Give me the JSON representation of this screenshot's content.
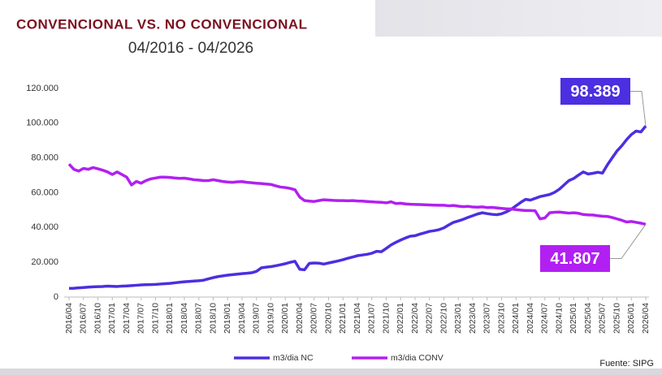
{
  "chart_data": {
    "type": "line",
    "title": "CONVENCIONAL VS. NO CONVENCIONAL",
    "subtitle": "04/2016 - 04/2026",
    "source": "Fuente: SIPG",
    "categories": [
      "2016/04",
      null,
      null,
      "2016/07",
      null,
      null,
      "2016/10",
      null,
      null,
      "2017/01",
      null,
      null,
      "2017/04",
      null,
      null,
      "2017/07",
      null,
      null,
      "2017/10",
      null,
      null,
      "2018/01",
      null,
      null,
      "2018/04",
      null,
      null,
      "2018/07",
      null,
      null,
      "2018/10",
      null,
      null,
      "2019/01",
      null,
      null,
      "2019/04",
      null,
      null,
      "2019/07",
      null,
      null,
      "2019/10",
      null,
      null,
      "2020/01",
      null,
      null,
      "2020/04",
      null,
      null,
      "2020/07",
      null,
      null,
      "2020/10",
      null,
      null,
      "2021/01",
      null,
      null,
      "2021/04",
      null,
      null,
      "2021/07",
      null,
      null,
      "2021/10",
      null,
      null,
      "2022/01",
      null,
      null,
      "2022/04",
      null,
      null,
      "2022/07",
      null,
      null,
      "2022/10",
      null,
      null,
      "2023/01",
      null,
      null,
      "2023/04",
      null,
      null,
      "2023/07",
      null,
      null,
      "2023/10",
      null,
      null,
      "2024/01",
      null,
      null,
      "2024/04",
      null,
      null,
      "2024/07",
      null,
      null,
      "2024/10",
      null,
      null,
      "2025/01",
      null,
      null,
      "2025/04",
      null,
      null,
      "2025/07",
      null,
      null,
      "2025/10",
      null,
      null,
      "2026/01",
      null,
      null,
      "2026/04"
    ],
    "series": [
      {
        "name": "m3/dia NC",
        "color": "#4b2fe0",
        "values": [
          5000,
          5100,
          5300,
          5500,
          5700,
          5900,
          6000,
          6100,
          6300,
          6200,
          6100,
          6300,
          6400,
          6600,
          6800,
          7000,
          7100,
          7200,
          7300,
          7500,
          7700,
          7900,
          8200,
          8500,
          8800,
          9000,
          9200,
          9400,
          9700,
          10500,
          11200,
          11800,
          12200,
          12600,
          12900,
          13200,
          13500,
          13700,
          14000,
          14800,
          16800,
          17200,
          17500,
          18000,
          18600,
          19200,
          20000,
          20600,
          16000,
          15700,
          19400,
          19600,
          19500,
          19000,
          19600,
          20200,
          20800,
          21500,
          22300,
          23000,
          23800,
          24200,
          24600,
          25200,
          26300,
          26100,
          28000,
          30000,
          31500,
          32800,
          34000,
          35000,
          35300,
          36200,
          37000,
          37800,
          38200,
          38800,
          39800,
          41500,
          43000,
          43800,
          44700,
          45800,
          46800,
          47800,
          48500,
          48000,
          47600,
          47400,
          47900,
          49000,
          50500,
          52500,
          54500,
          56200,
          55800,
          56800,
          57800,
          58400,
          59000,
          60200,
          62000,
          64500,
          67000,
          68200,
          70200,
          72000,
          70800,
          71200,
          71800,
          71300,
          76000,
          80000,
          84000,
          87000,
          90500,
          93500,
          95500,
          95000,
          98389
        ],
        "value_labels": [
          null,
          null,
          null,
          null,
          null,
          null,
          null,
          null,
          null,
          null,
          null,
          null,
          null,
          null,
          null,
          null,
          null,
          null,
          null,
          null,
          null,
          null,
          null,
          null,
          null,
          null,
          null,
          null,
          null,
          null,
          null,
          null,
          null,
          null,
          null,
          null,
          null,
          null,
          null,
          null,
          null,
          null,
          null,
          null,
          null,
          null,
          null,
          null,
          null,
          null,
          null,
          null,
          null,
          null,
          null,
          null,
          null,
          null,
          null,
          null,
          null,
          null,
          null,
          null,
          null,
          null,
          null,
          null,
          null,
          null,
          null,
          null,
          null,
          null,
          null,
          null,
          null,
          null,
          null,
          null,
          null,
          null,
          null,
          null,
          null,
          null,
          null,
          null,
          null,
          null,
          null,
          null,
          null,
          null,
          null,
          null,
          null,
          null,
          null,
          null,
          null,
          null,
          null,
          null,
          null,
          null,
          null,
          null,
          null,
          null,
          null,
          null,
          null,
          null,
          null,
          null,
          null,
          null,
          null,
          null,
          "98.389"
        ]
      },
      {
        "name": "m3/dia CONV",
        "color": "#b21ff2",
        "values": [
          76500,
          73500,
          72500,
          74000,
          73500,
          74500,
          73800,
          73000,
          72000,
          70500,
          72000,
          70500,
          69000,
          64500,
          66500,
          65500,
          67000,
          68000,
          68500,
          69000,
          69000,
          68800,
          68500,
          68300,
          68400,
          68000,
          67500,
          67300,
          67000,
          67000,
          67500,
          67000,
          66500,
          66200,
          66000,
          66300,
          66400,
          66000,
          65800,
          65500,
          65300,
          65000,
          64800,
          64000,
          63300,
          63000,
          62500,
          61800,
          57500,
          55500,
          55200,
          55000,
          55500,
          56000,
          55800,
          55600,
          55500,
          55500,
          55400,
          55500,
          55300,
          55200,
          55000,
          54800,
          54600,
          54500,
          54200,
          54800,
          53800,
          54000,
          53600,
          53400,
          53300,
          53200,
          53100,
          53000,
          52900,
          52800,
          52800,
          52500,
          52700,
          52300,
          52000,
          52200,
          51800,
          51700,
          51900,
          51500,
          51600,
          51300,
          51000,
          50800,
          50700,
          50300,
          50000,
          49800,
          49800,
          49600,
          45000,
          45500,
          48500,
          48800,
          48900,
          48600,
          48300,
          48500,
          48200,
          47500,
          47300,
          47200,
          46800,
          46500,
          46400,
          45800,
          45000,
          44200,
          43200,
          43500,
          43000,
          42500,
          41807
        ],
        "value_labels": [
          null,
          null,
          null,
          null,
          null,
          null,
          null,
          null,
          null,
          null,
          null,
          null,
          null,
          null,
          null,
          null,
          null,
          null,
          null,
          null,
          null,
          null,
          null,
          null,
          null,
          null,
          null,
          null,
          null,
          null,
          null,
          null,
          null,
          null,
          null,
          null,
          null,
          null,
          null,
          null,
          null,
          null,
          null,
          null,
          null,
          null,
          null,
          null,
          null,
          null,
          null,
          null,
          null,
          null,
          null,
          null,
          null,
          null,
          null,
          null,
          null,
          null,
          null,
          null,
          null,
          null,
          null,
          null,
          null,
          null,
          null,
          null,
          null,
          null,
          null,
          null,
          null,
          null,
          null,
          null,
          null,
          null,
          null,
          null,
          null,
          null,
          null,
          null,
          null,
          null,
          null,
          null,
          null,
          null,
          null,
          null,
          null,
          null,
          null,
          null,
          null,
          null,
          null,
          null,
          null,
          null,
          null,
          null,
          null,
          null,
          null,
          null,
          null,
          null,
          null,
          null,
          null,
          null,
          null,
          null,
          "41.807"
        ]
      }
    ],
    "ylim": [
      0,
      120000
    ],
    "yticks": [
      0,
      {
        "value": 20000,
        "label": "20.000"
      },
      {
        "value": 40000,
        "label": "40.000"
      },
      {
        "value": 60000,
        "label": "60.000"
      },
      {
        "value": 80000,
        "label": "80.000"
      },
      {
        "value": 100000,
        "label": "100.000"
      },
      {
        "value": 120000,
        "label": "120.000"
      }
    ],
    "grid": false,
    "legend": "bottom"
  }
}
